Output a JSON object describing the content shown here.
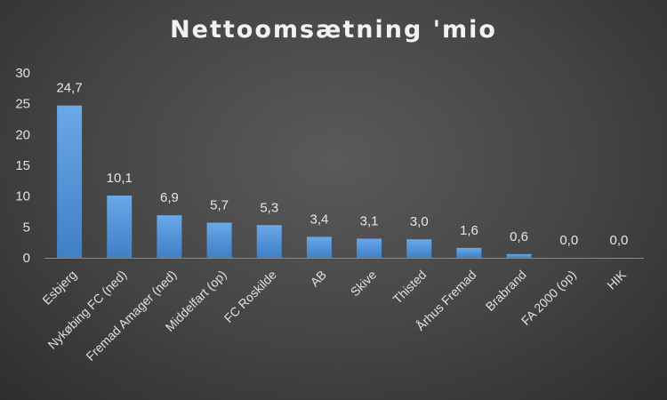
{
  "chart_data": {
    "type": "bar",
    "title": "Nettoomsætning 'mio",
    "categories": [
      "Esbjerg",
      "Nykøbing FC (ned)",
      "Fremad Amager (ned)",
      "Middelfart (op)",
      "FC Roskilde",
      "AB",
      "Skive",
      "Thisted",
      "Århus Fremad",
      "Brabrand",
      "FA 2000 (op)",
      "HIK"
    ],
    "values": [
      24.7,
      10.1,
      6.9,
      5.7,
      5.3,
      3.4,
      3.1,
      3.0,
      1.6,
      0.6,
      0.0,
      0.0
    ],
    "value_labels": [
      "24,7",
      "10,1",
      "6,9",
      "5,7",
      "5,3",
      "3,4",
      "3,1",
      "3,0",
      "1,6",
      "0,6",
      "0,0",
      "0,0"
    ],
    "ylim": [
      0,
      30
    ],
    "yticks": [
      0,
      5,
      10,
      15,
      20,
      25,
      30
    ],
    "xlabel": "",
    "ylabel": "",
    "grid": false,
    "legend": "none",
    "colors": {
      "bar_top": "#6aa8e8",
      "bar_bottom": "#3f7fc6"
    }
  }
}
